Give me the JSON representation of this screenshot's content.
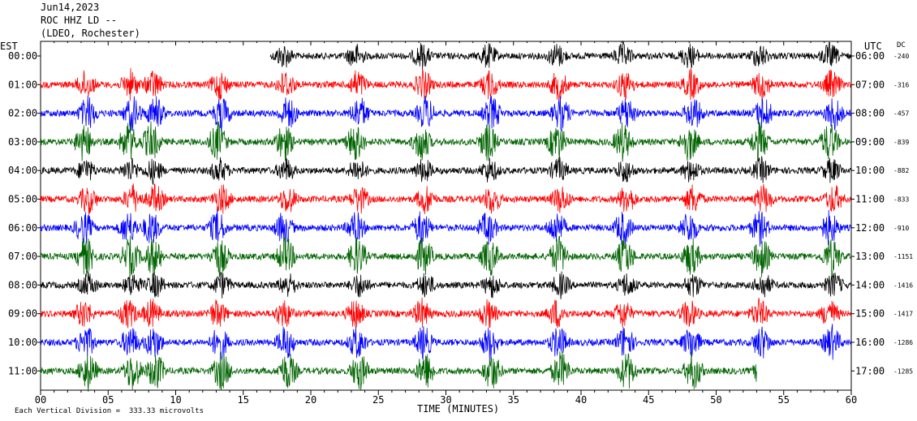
{
  "header": {
    "date": "Jun14,2023",
    "station": "ROC HHZ LD --",
    "network": "(LDEO, Rochester)"
  },
  "left_axis_label": "EST",
  "right_axis_label": "UTC",
  "dc_label": "DC",
  "footer_note": "Each Vertical Division =  333.33 microvolts",
  "chart_data": {
    "type": "line",
    "title": "ROC HHZ LD --",
    "xlabel": "TIME (MINUTES)",
    "xlim": [
      0,
      60
    ],
    "x_ticks": [
      "00",
      "05",
      "10",
      "15",
      "20",
      "25",
      "30",
      "35",
      "40",
      "45",
      "50",
      "55",
      "60"
    ],
    "x_tick_values": [
      0,
      5,
      10,
      15,
      20,
      25,
      30,
      35,
      40,
      45,
      50,
      55,
      60
    ],
    "rows": [
      {
        "est": "00:00",
        "utc": "06:00",
        "dc": "-240",
        "color": "#000000"
      },
      {
        "est": "01:00",
        "utc": "07:00",
        "dc": "-316",
        "color": "#ff0000"
      },
      {
        "est": "02:00",
        "utc": "08:00",
        "dc": "-457",
        "color": "#0000ff"
      },
      {
        "est": "03:00",
        "utc": "09:00",
        "dc": "-839",
        "color": "#006400"
      },
      {
        "est": "04:00",
        "utc": "10:00",
        "dc": "-882",
        "color": "#000000"
      },
      {
        "est": "05:00",
        "utc": "11:00",
        "dc": "-833",
        "color": "#ff0000"
      },
      {
        "est": "06:00",
        "utc": "12:00",
        "dc": "-910",
        "color": "#0000ff"
      },
      {
        "est": "07:00",
        "utc": "13:00",
        "dc": "-1151",
        "color": "#006400"
      },
      {
        "est": "08:00",
        "utc": "14:00",
        "dc": "-1416",
        "color": "#000000"
      },
      {
        "est": "09:00",
        "utc": "15:00",
        "dc": "-1417",
        "color": "#ff0000"
      },
      {
        "est": "10:00",
        "utc": "16:00",
        "dc": "-1286",
        "color": "#0000ff"
      },
      {
        "est": "11:00",
        "utc": "17:00",
        "dc": "-1285",
        "color": "#006400"
      }
    ],
    "row_data_start_minute": [
      17,
      0,
      0,
      0,
      0,
      0,
      0,
      0,
      0,
      0,
      0,
      0
    ],
    "row_data_end_minute": [
      60,
      60,
      60,
      60,
      60,
      60,
      60,
      60,
      60,
      60,
      60,
      53
    ],
    "burst_minutes": [
      3.2,
      6.5,
      8.2,
      13.1,
      18.0,
      23.3,
      28.2,
      33.1,
      38.2,
      43.1,
      48.0,
      53.2,
      58.4
    ],
    "grid": false,
    "legend": "none"
  }
}
